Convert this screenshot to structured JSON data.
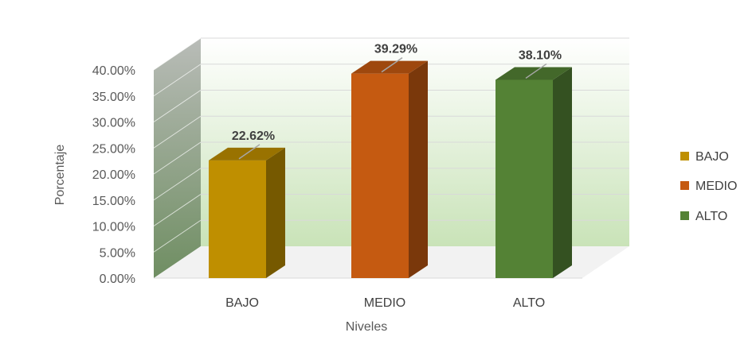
{
  "chart_data": {
    "type": "bar",
    "variant": "3d-column",
    "categories": [
      "BAJO",
      "MEDIO",
      "ALTO"
    ],
    "values": [
      22.62,
      39.29,
      38.1
    ],
    "value_labels": [
      "22.62%",
      "39.29%",
      "38.10%"
    ],
    "colors": [
      "#BF8F00",
      "#C55A11",
      "#548235"
    ],
    "xlabel": "Niveles",
    "ylabel": "Porcentaje",
    "ylim": [
      0,
      40
    ],
    "yticks": [
      "0.00%",
      "5.00%",
      "10.00%",
      "15.00%",
      "20.00%",
      "25.00%",
      "30.00%",
      "35.00%",
      "40.00%"
    ],
    "grid": true,
    "legend": {
      "position": "right",
      "entries": [
        "BAJO",
        "MEDIO",
        "ALTO"
      ]
    }
  }
}
